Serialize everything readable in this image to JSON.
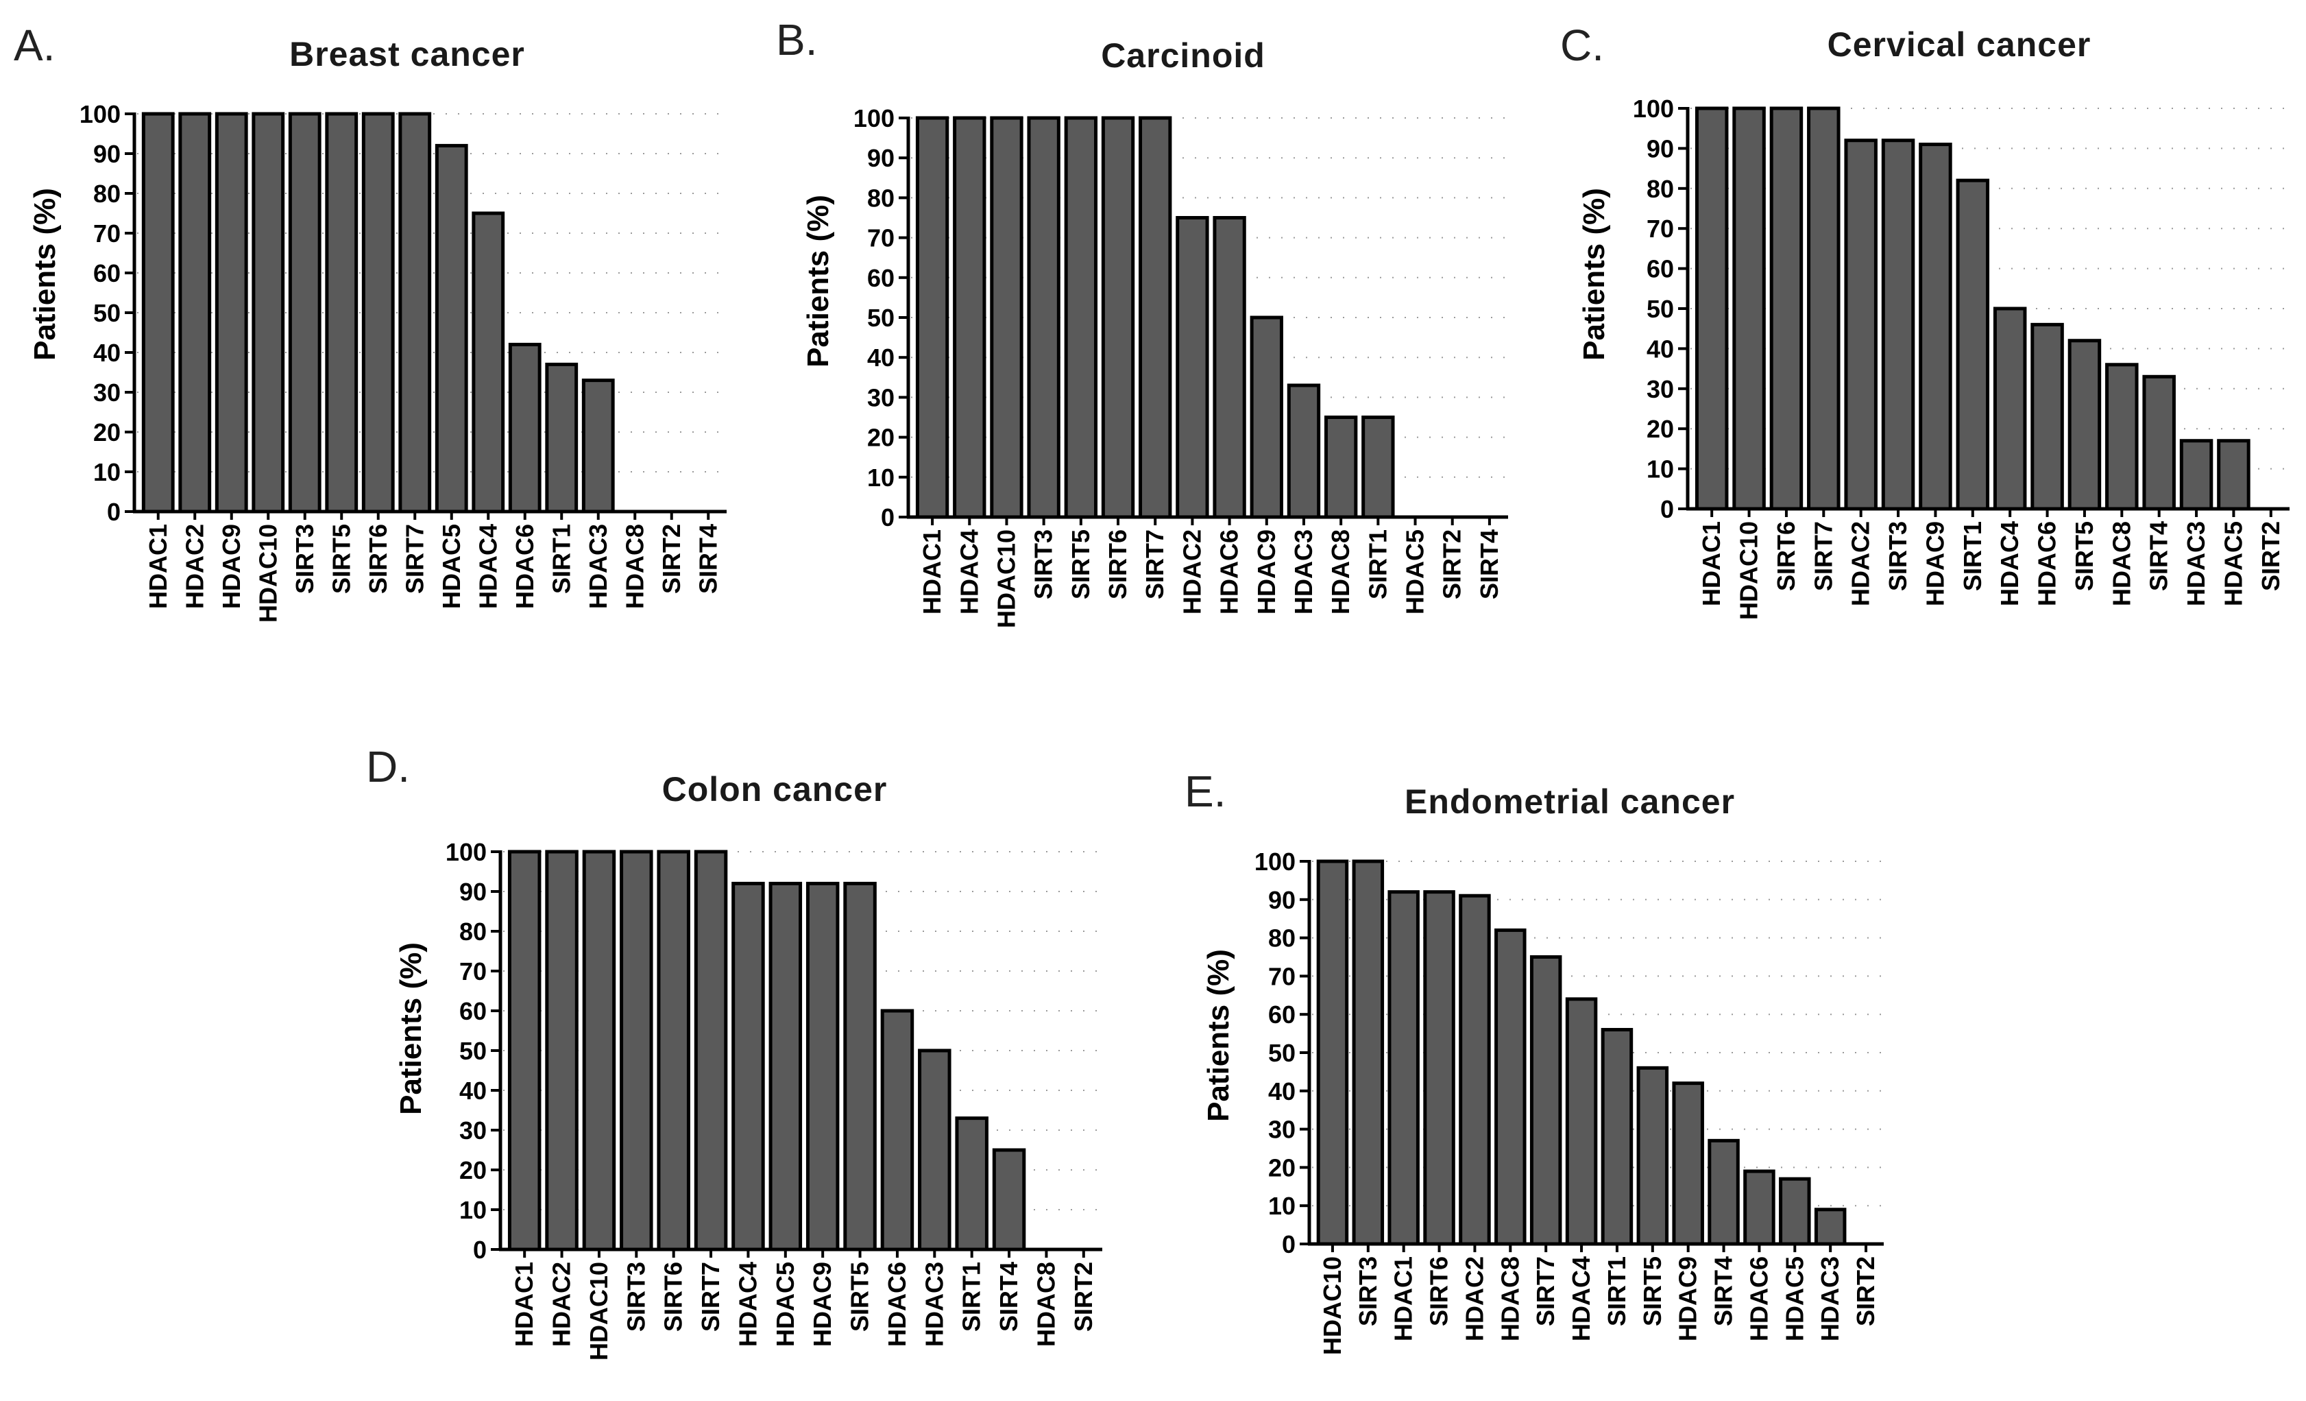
{
  "figure": {
    "panels": [
      "A.",
      "B.",
      "C.",
      "D.",
      "E."
    ]
  },
  "chart_data": [
    {
      "id": "A",
      "type": "bar",
      "panel_label": "A.",
      "title": "Breast cancer",
      "ylabel": "Patients (%)",
      "xlabel": "",
      "ylim": [
        0,
        100
      ],
      "yticks": [
        0,
        10,
        20,
        30,
        40,
        50,
        60,
        70,
        80,
        90,
        100
      ],
      "categories": [
        "HDAC1",
        "HDAC2",
        "HDAC9",
        "HDAC10",
        "SIRT3",
        "SIRT5",
        "SIRT6",
        "SIRT7",
        "HDAC5",
        "HDAC4",
        "HDAC6",
        "SIRT1",
        "HDAC3",
        "HDAC8",
        "SIRT2",
        "SIRT4"
      ],
      "values": [
        100,
        100,
        100,
        100,
        100,
        100,
        100,
        100,
        92,
        75,
        42,
        37,
        33,
        0,
        0,
        0
      ],
      "bar_color": "#5a5a5a"
    },
    {
      "id": "B",
      "type": "bar",
      "panel_label": "B.",
      "title": "Carcinoid",
      "ylabel": "Patients (%)",
      "xlabel": "",
      "ylim": [
        0,
        100
      ],
      "yticks": [
        0,
        10,
        20,
        30,
        40,
        50,
        60,
        70,
        80,
        90,
        100
      ],
      "categories": [
        "HDAC1",
        "HDAC4",
        "HDAC10",
        "SIRT3",
        "SIRT5",
        "SIRT6",
        "SIRT7",
        "HDAC2",
        "HDAC6",
        "HDAC9",
        "HDAC3",
        "HDAC8",
        "SIRT1",
        "HDAC5",
        "SIRT2",
        "SIRT4"
      ],
      "values": [
        100,
        100,
        100,
        100,
        100,
        100,
        100,
        75,
        75,
        50,
        33,
        25,
        25,
        0,
        0,
        0
      ],
      "bar_color": "#5a5a5a"
    },
    {
      "id": "C",
      "type": "bar",
      "panel_label": "C.",
      "title": "Cervical cancer",
      "ylabel": "Patients (%)",
      "xlabel": "",
      "ylim": [
        0,
        100
      ],
      "yticks": [
        0,
        10,
        20,
        30,
        40,
        50,
        60,
        70,
        80,
        90,
        100
      ],
      "categories": [
        "HDAC1",
        "HDAC10",
        "SIRT6",
        "SIRT7",
        "HDAC2",
        "SIRT3",
        "HDAC9",
        "SIRT1",
        "HDAC4",
        "HDAC6",
        "SIRT5",
        "HDAC8",
        "SIRT4",
        "HDAC3",
        "HDAC5",
        "SIRT2"
      ],
      "values": [
        100,
        100,
        100,
        100,
        92,
        92,
        91,
        82,
        50,
        46,
        42,
        36,
        33,
        17,
        17,
        0
      ],
      "bar_color": "#5a5a5a"
    },
    {
      "id": "D",
      "type": "bar",
      "panel_label": "D.",
      "title": "Colon cancer",
      "ylabel": "Patients (%)",
      "xlabel": "",
      "ylim": [
        0,
        100
      ],
      "yticks": [
        0,
        10,
        20,
        30,
        40,
        50,
        60,
        70,
        80,
        90,
        100
      ],
      "categories": [
        "HDAC1",
        "HDAC2",
        "HDAC10",
        "SIRT3",
        "SIRT6",
        "SIRT7",
        "HDAC4",
        "HDAC5",
        "HDAC9",
        "SIRT5",
        "HDAC6",
        "HDAC3",
        "SIRT1",
        "SIRT4",
        "HDAC8",
        "SIRT2"
      ],
      "values": [
        100,
        100,
        100,
        100,
        100,
        100,
        92,
        92,
        92,
        92,
        60,
        50,
        33,
        25,
        0,
        0
      ],
      "bar_color": "#5a5a5a"
    },
    {
      "id": "E",
      "type": "bar",
      "panel_label": "E.",
      "title": "Endometrial cancer",
      "ylabel": "Patients (%)",
      "xlabel": "",
      "ylim": [
        0,
        100
      ],
      "yticks": [
        0,
        10,
        20,
        30,
        40,
        50,
        60,
        70,
        80,
        90,
        100
      ],
      "categories": [
        "HDAC10",
        "SIRT3",
        "HDAC1",
        "SIRT6",
        "HDAC2",
        "HDAC8",
        "SIRT7",
        "HDAC4",
        "SIRT1",
        "SIRT5",
        "HDAC9",
        "SIRT4",
        "HDAC6",
        "HDAC5",
        "HDAC3",
        "SIRT2"
      ],
      "values": [
        100,
        100,
        92,
        92,
        91,
        82,
        75,
        64,
        56,
        46,
        42,
        27,
        19,
        17,
        9,
        0
      ],
      "bar_color": "#5a5a5a"
    }
  ]
}
